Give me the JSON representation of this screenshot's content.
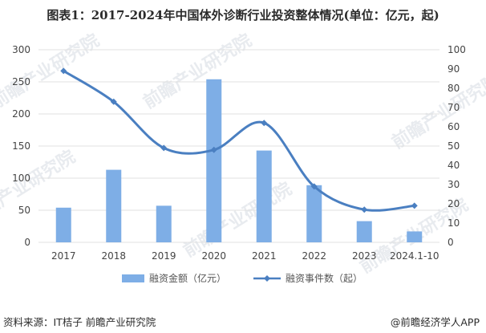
{
  "title": "图表1：2017-2024年中国体外诊断行业投资整体情况(单位：亿元，起)",
  "footer": {
    "source": "资料来源：IT桔子 前瞻产业研究院",
    "brand": "@前瞻经济学人APP"
  },
  "watermark_text": "前瞻产业研究院",
  "colors": {
    "bar": "#7eaee6",
    "line": "#4a7fc1",
    "grid": "#e0e0e0",
    "axis_text": "#444444"
  },
  "chart_data": {
    "type": "bar",
    "categories": [
      "2017",
      "2018",
      "2019",
      "2020",
      "2021",
      "2022",
      "2023",
      "2024.1-10"
    ],
    "series": [
      {
        "name": "融资金额（亿元）",
        "type": "bar",
        "axis": "left",
        "values": [
          54,
          113,
          57,
          254,
          143,
          89,
          33,
          17
        ]
      },
      {
        "name": "融资事件数（起）",
        "type": "line",
        "axis": "right",
        "values": [
          89,
          73,
          49,
          48,
          62,
          29,
          17,
          19
        ]
      }
    ],
    "y_left": {
      "min": 0,
      "max": 300,
      "ticks": [
        0,
        50,
        100,
        150,
        200,
        250,
        300
      ]
    },
    "y_right": {
      "min": 0,
      "max": 100,
      "ticks": [
        0,
        10,
        20,
        30,
        40,
        50,
        60,
        70,
        80,
        90,
        100
      ]
    },
    "grid": true,
    "legend_position": "bottom"
  }
}
